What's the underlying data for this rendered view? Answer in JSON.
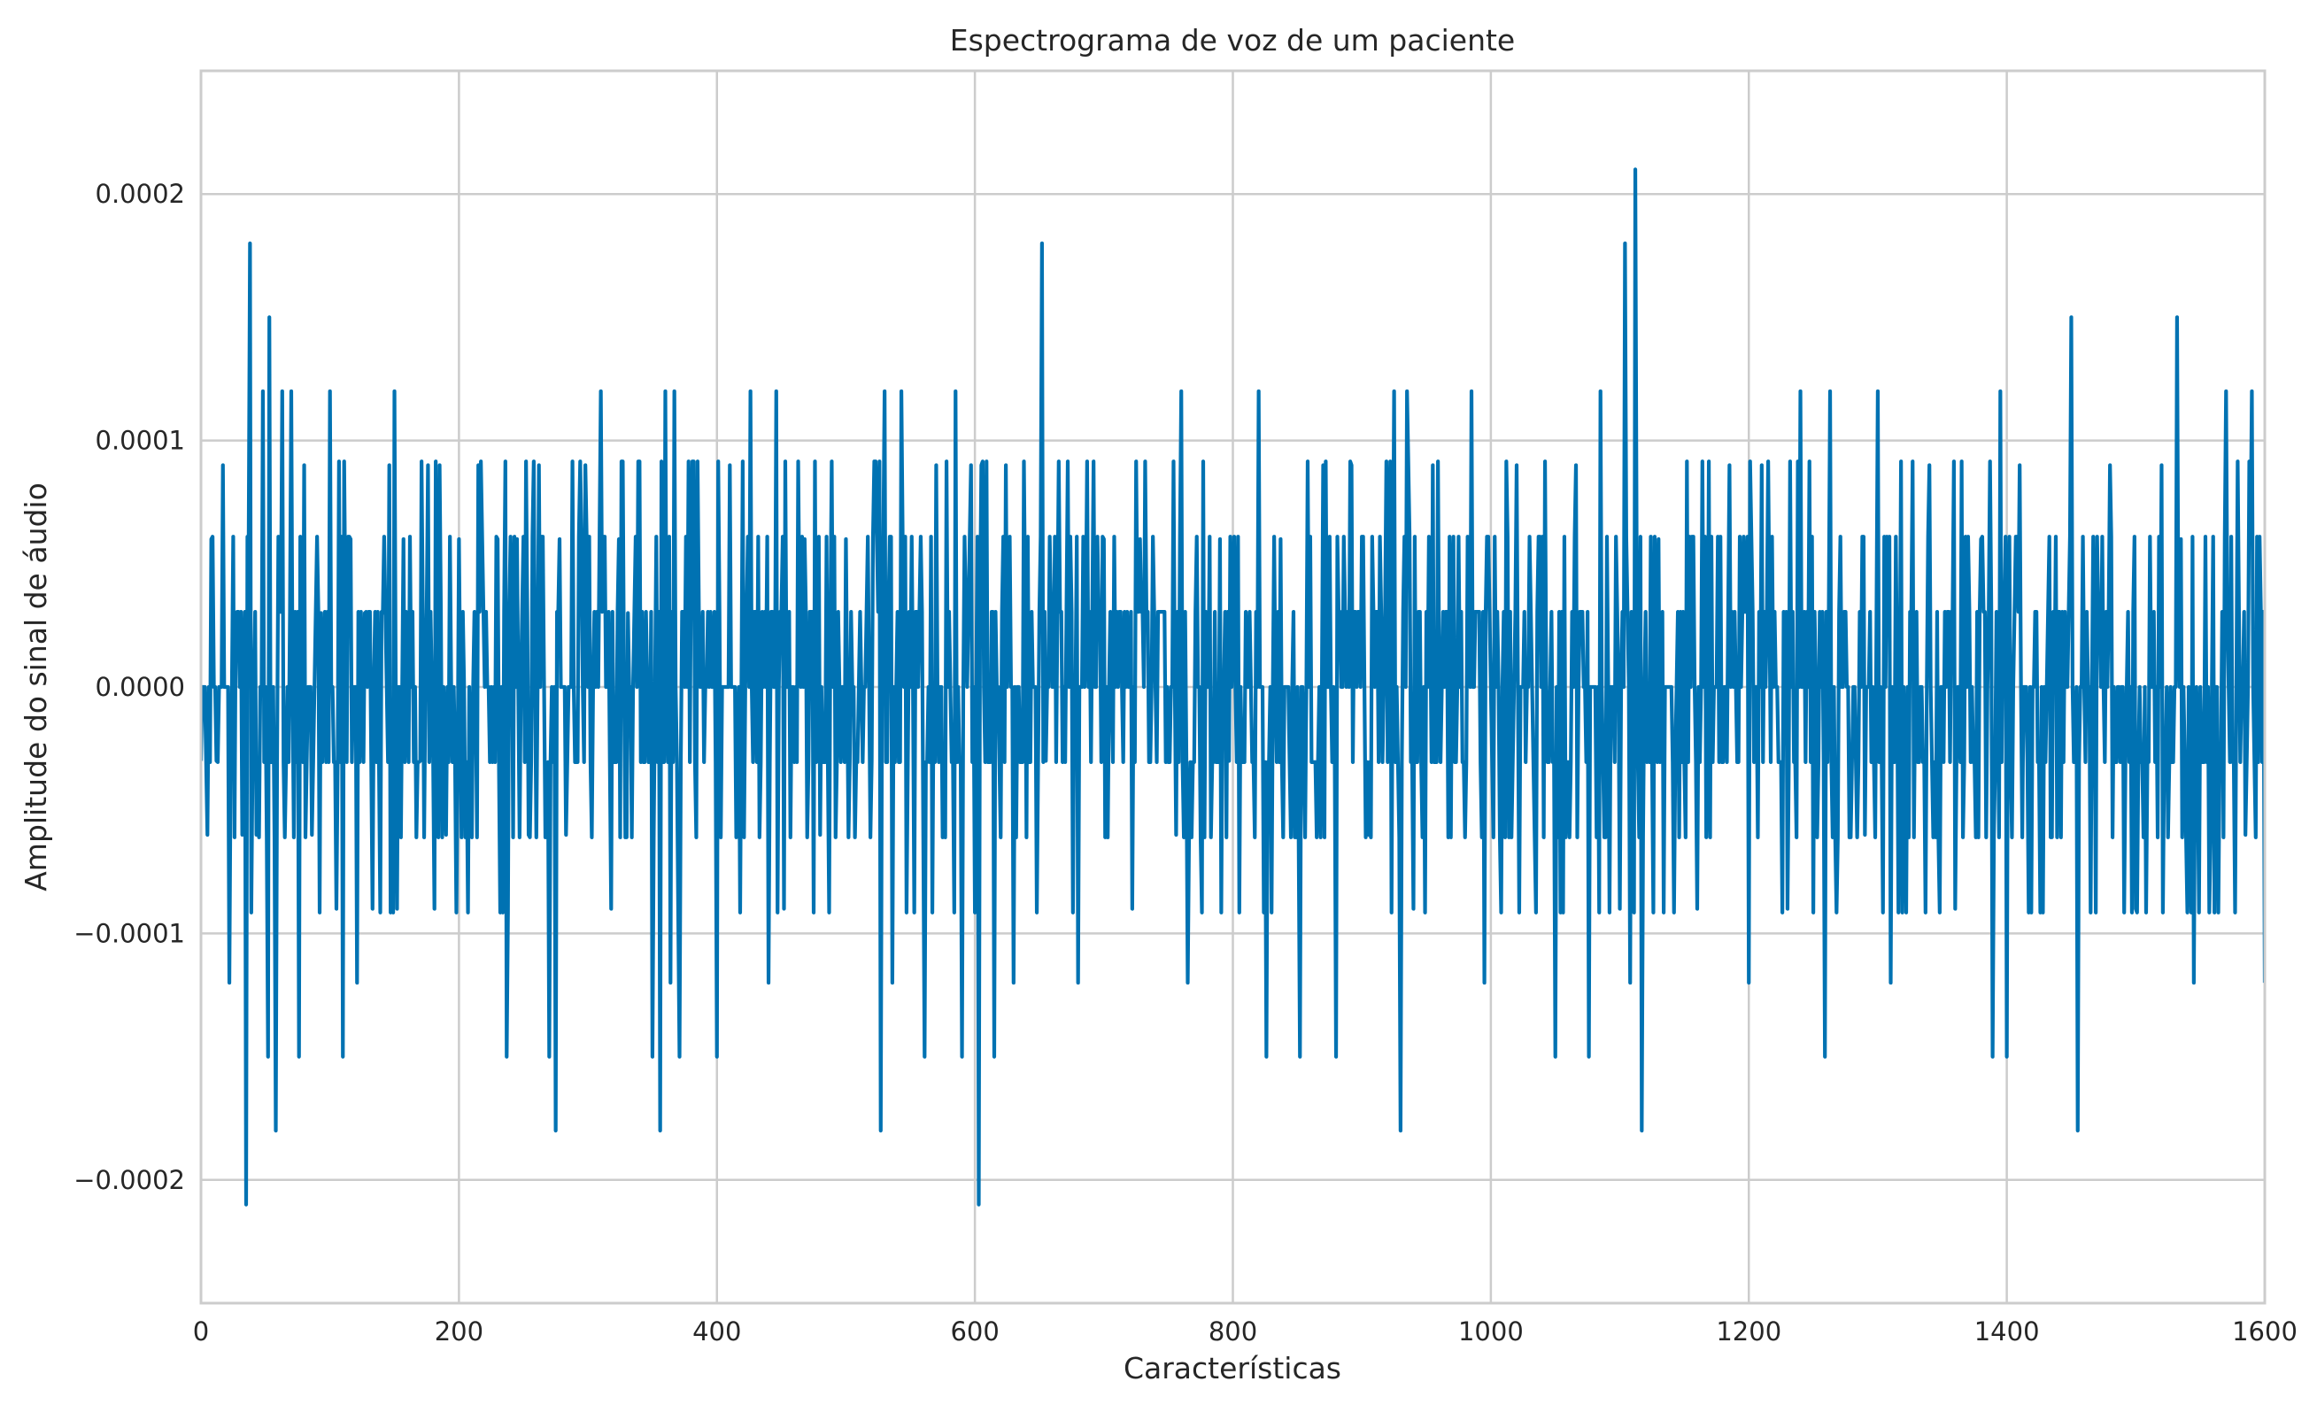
{
  "chart_data": {
    "type": "line",
    "title": "Espectrograma de voz de um paciente",
    "xlabel": "Características",
    "ylabel": "Amplitude do sinal de áudio",
    "xlim": [
      0,
      1600
    ],
    "ylim": [
      -0.00025,
      0.00025
    ],
    "grid": true,
    "legend": "none",
    "x_ticks": [
      0,
      200,
      400,
      600,
      800,
      1000,
      1200,
      1400,
      1600
    ],
    "x_tick_labels": [
      "0",
      "200",
      "400",
      "600",
      "800",
      "1000",
      "1200",
      "1400",
      "1600"
    ],
    "y_ticks": [
      0.0002,
      0.0001,
      0.0,
      -0.0001,
      -0.0002
    ],
    "y_tick_labels": [
      "0.0002",
      "0.0001",
      "0.0000",
      "−0.0001",
      "−0.0002"
    ],
    "colors": {
      "series": "#0072b2",
      "grid": "#cccccc",
      "text": "#262626"
    },
    "quantum": 3.05e-05,
    "noise_seed": 20240611,
    "series": [
      {
        "values_note": "Sparse anchor points; remaining samples are bounded noise in the range -0.00006..0.00006 between anchors",
        "x": [
          0,
          5,
          8,
          12,
          17,
          22,
          27,
          32,
          35,
          38,
          43,
          48,
          52,
          53,
          58,
          63,
          66,
          70,
          76,
          80,
          86,
          93,
          100,
          105,
          110,
          116,
          121,
          127,
          133,
          141,
          146,
          150,
          152,
          157,
          163,
          170,
          176,
          181,
          185,
          190,
          200,
          209,
          215,
          230,
          237,
          245,
          254,
          262,
          270,
          275,
          278,
          283,
          298,
          310,
          318,
          324,
          331,
          350,
          356,
          360,
          364,
          367,
          371,
          380,
          400,
          410,
          426,
          440,
          446,
          452,
          468,
          480,
          500,
          520,
          527,
          530,
          536,
          543,
          561,
          570,
          585,
          590,
          597,
          603,
          605,
          615,
          624,
          630,
          652,
          655,
          680,
          700,
          722,
          728,
          756,
          760,
          765,
          790,
          797,
          820,
          826,
          837,
          852,
          870,
          880,
          892,
          905,
          925,
          930,
          935,
          940,
          955,
          985,
          995,
          1020,
          1050,
          1066,
          1076,
          1085,
          1100,
          1104,
          1108,
          1112,
          1117,
          1130,
          1160,
          1185,
          1200,
          1210,
          1230,
          1240,
          1259,
          1263,
          1290,
          1300,
          1310,
          1340,
          1360,
          1380,
          1389,
          1395,
          1400,
          1410,
          1450,
          1455,
          1460,
          1480,
          1500,
          1520,
          1532,
          1535,
          1545,
          1570,
          1585,
          1590,
          1600
        ],
        "y": [
          -3e-05,
          -6e-05,
          6e-05,
          -3e-05,
          9e-05,
          -0.00012,
          3e-05,
          -6e-05,
          -0.00021,
          0.00018,
          -6e-05,
          0.00012,
          -0.00015,
          0.00015,
          -0.00018,
          0.00012,
          -3e-05,
          0.00012,
          -0.00015,
          9e-05,
          -6e-05,
          3e-05,
          0.00012,
          -9e-05,
          -0.00015,
          6e-05,
          -0.00012,
          3e-05,
          -9e-05,
          3e-05,
          9e-05,
          0.00012,
          -9e-05,
          6e-05,
          0.0,
          -3e-05,
          9e-05,
          -9e-05,
          9e-05,
          -6e-05,
          6e-05,
          -3e-05,
          9e-05,
          6e-05,
          -0.00015,
          6e-05,
          -6e-05,
          9e-05,
          -0.00015,
          -0.00018,
          6e-05,
          -6e-05,
          9e-05,
          0.00012,
          -9e-05,
          6e-05,
          3e-05,
          -0.00015,
          -0.00018,
          0.00012,
          -0.00012,
          0.00012,
          -0.00015,
          6e-05,
          -0.00015,
          9e-05,
          0.00012,
          -0.00012,
          0.00012,
          -9e-05,
          6e-05,
          -6e-05,
          6e-05,
          -3e-05,
          -0.00018,
          0.00012,
          -0.00012,
          0.00012,
          -0.00015,
          9e-05,
          0.00012,
          -0.00015,
          9e-05,
          -0.00021,
          9e-05,
          -0.00015,
          9e-05,
          -0.00012,
          0.00018,
          -3e-05,
          -0.00012,
          6e-05,
          -9e-05,
          6e-05,
          -6e-05,
          0.00012,
          -0.00012,
          6e-05,
          -3e-05,
          0.00012,
          -0.00015,
          6e-05,
          -0.00015,
          9e-05,
          -0.00015,
          9e-05,
          -6e-05,
          0.00012,
          -0.00018,
          0.00012,
          -9e-05,
          9e-05,
          0.00012,
          -0.00012,
          9e-05,
          -0.00015,
          9e-05,
          -0.00015,
          0.00012,
          -9e-05,
          0.00018,
          -0.00012,
          0.00021,
          -0.00018,
          6e-05,
          -9e-05,
          9e-05,
          -0.00012,
          9e-05,
          -9e-05,
          0.00012,
          -0.00015,
          0.00012,
          -6e-05,
          0.00012,
          -0.00012,
          9e-05,
          -9e-05,
          6e-05,
          -0.00015,
          0.00012,
          -0.00015,
          9e-05,
          0.00015,
          -0.00018,
          0.0,
          9e-05,
          -9e-05,
          9e-05,
          0.00015,
          6e-05,
          -0.00012,
          0.00012,
          -6e-05,
          0.00012,
          -0.00012
        ]
      }
    ]
  }
}
